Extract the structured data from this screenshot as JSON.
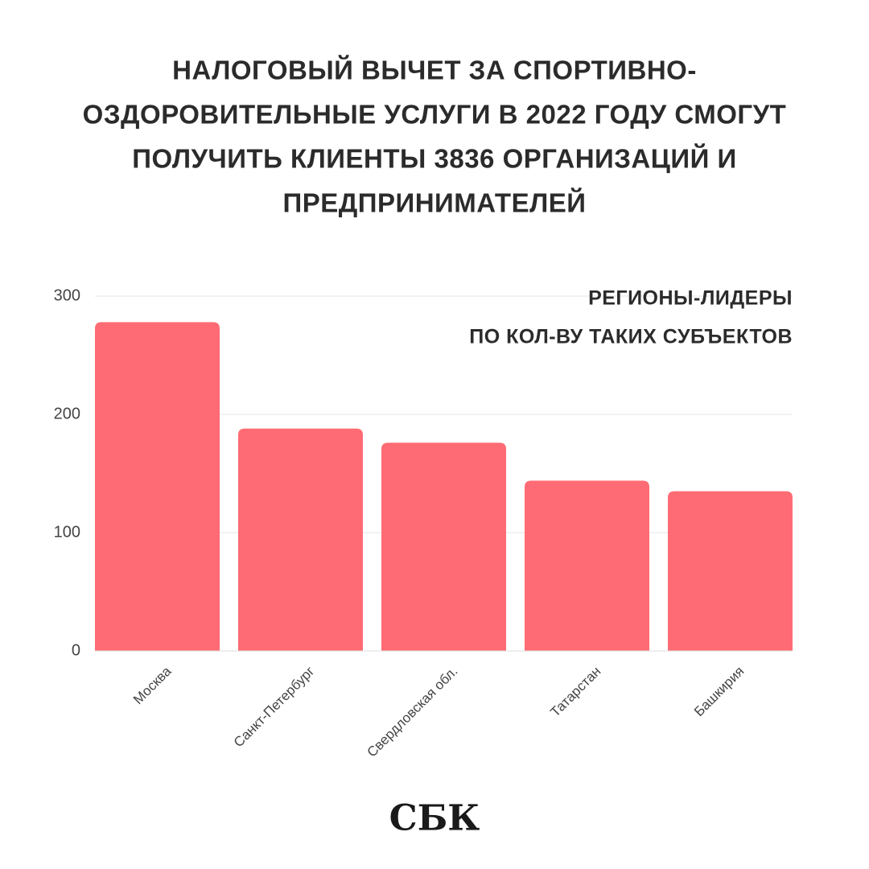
{
  "chart_data": {
    "type": "bar",
    "title": [
      "НАЛОГОВЫЙ ВЫЧЕТ ЗА СПОРТИВНО-",
      "ОЗДОРОВИТЕЛЬНЫЕ УСЛУГИ В 2022 ГОДУ СМОГУТ",
      "ПОЛУЧИТЬ КЛИЕНТЫ 3836 ОРГАНИЗАЦИЙ И",
      "ПРЕДПРИНИМАТЕЛЕЙ"
    ],
    "annotation": [
      "РЕГИОНЫ-ЛИДЕРЫ",
      "ПО КОЛ-ВУ ТАКИХ СУБЪЕКТОВ"
    ],
    "categories": [
      "Москва",
      "Санкт-Петербург",
      "Свердловская обл.",
      "Татарстан",
      "Башкирия"
    ],
    "values": [
      278,
      188,
      176,
      144,
      135
    ],
    "color": "#ff6b74",
    "ylim": [
      0,
      300
    ],
    "yticks": [
      0,
      100,
      200,
      300
    ],
    "grid": true,
    "logo": "СБК"
  }
}
